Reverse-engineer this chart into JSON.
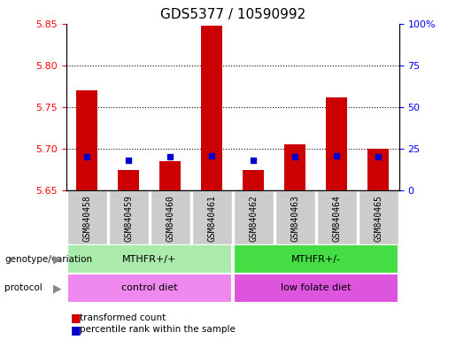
{
  "title": "GDS5377 / 10590992",
  "samples": [
    "GSM840458",
    "GSM840459",
    "GSM840460",
    "GSM840461",
    "GSM840462",
    "GSM840463",
    "GSM840464",
    "GSM840465"
  ],
  "transformed_count": [
    5.77,
    5.675,
    5.685,
    5.848,
    5.675,
    5.705,
    5.762,
    5.7
  ],
  "percentile_rank": [
    20,
    18,
    20,
    21,
    18,
    20,
    21,
    20
  ],
  "ylim_left": [
    5.65,
    5.85
  ],
  "ylim_right": [
    0,
    100
  ],
  "yticks_left": [
    5.65,
    5.7,
    5.75,
    5.8,
    5.85
  ],
  "yticks_right": [
    0,
    25,
    50,
    75,
    100
  ],
  "bar_base": 5.65,
  "bar_color": "#cc0000",
  "percentile_color": "#0000cc",
  "genotype_groups": [
    {
      "label": "MTHFR+/+",
      "start": 0,
      "end": 3,
      "color": "#aaeaaa"
    },
    {
      "label": "MTHFR+/-",
      "start": 4,
      "end": 7,
      "color": "#44dd44"
    }
  ],
  "protocol_groups": [
    {
      "label": "control diet",
      "start": 0,
      "end": 3,
      "color": "#ee88ee"
    },
    {
      "label": "low folate diet",
      "start": 4,
      "end": 7,
      "color": "#dd55dd"
    }
  ],
  "legend_items": [
    {
      "label": "transformed count",
      "color": "#cc0000"
    },
    {
      "label": "percentile rank within the sample",
      "color": "#0000cc"
    }
  ],
  "sample_box_color": "#cccccc",
  "title_fontsize": 11,
  "tick_fontsize": 8,
  "annot_fontsize": 8,
  "sample_fontsize": 7
}
